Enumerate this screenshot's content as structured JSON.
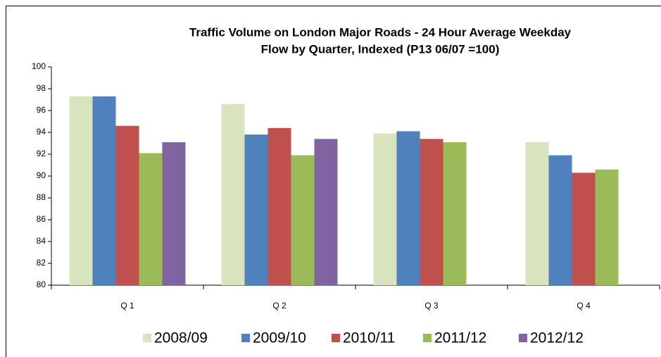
{
  "chart_data": {
    "type": "bar",
    "title": [
      "Traffic Volume on London Major Roads  - 24 Hour Average Weekday",
      "Flow by Quarter,  Indexed (P13 06/07 =100)"
    ],
    "categories": [
      "Q 1",
      "Q 2",
      "Q 3",
      "Q 4"
    ],
    "series": [
      {
        "name": "2008/09",
        "color": "#d7e4bd",
        "values": [
          97.3,
          96.6,
          93.9,
          93.1
        ]
      },
      {
        "name": "2009/10",
        "color": "#4f81bd",
        "values": [
          97.3,
          93.8,
          94.1,
          91.9
        ]
      },
      {
        "name": "2010/11",
        "color": "#c0504d",
        "values": [
          94.6,
          94.4,
          93.4,
          90.3
        ]
      },
      {
        "name": "2011/12",
        "color": "#9bbb59",
        "values": [
          92.1,
          91.9,
          93.1,
          90.6
        ]
      },
      {
        "name": "2012/12",
        "color": "#8064a2",
        "values": [
          93.1,
          93.4,
          null,
          null
        ]
      }
    ],
    "ylim": [
      80,
      100
    ],
    "yticks": [
      80,
      82,
      84,
      86,
      88,
      90,
      92,
      94,
      96,
      98,
      100
    ],
    "grid": false,
    "legend": "bottom"
  }
}
